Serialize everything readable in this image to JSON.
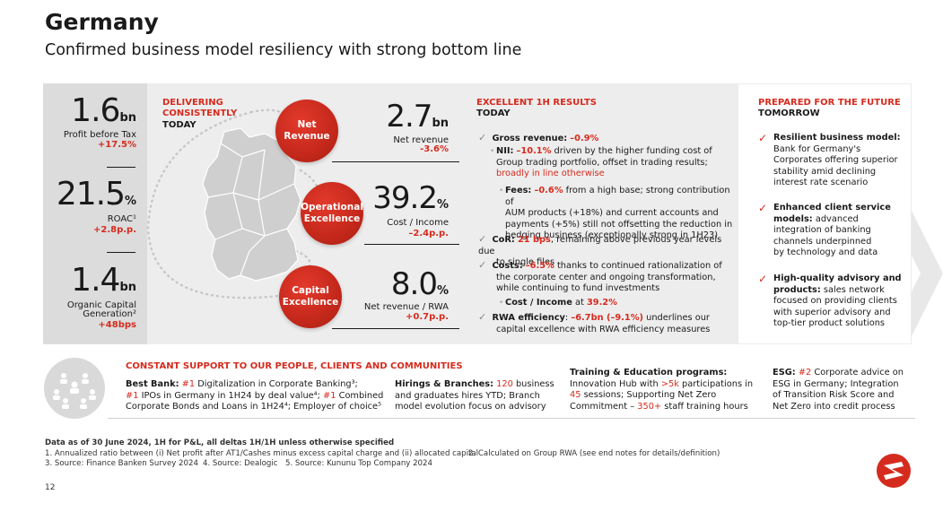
{
  "header": {
    "title": "Germany",
    "subtitle": "Confirmed business model resiliency with strong bottom line"
  },
  "kpis": [
    {
      "value": "1.6",
      "unit": "bn",
      "label": "Profit before Tax",
      "delta": "+17.5%"
    },
    {
      "value": "21.5",
      "unit": "%",
      "label": "ROAC¹",
      "delta": "+2.8p.p."
    },
    {
      "value": "1.4",
      "unit": "bn",
      "label_line1": "Organic Capital",
      "label_line2": "Generation²",
      "delta": "+48bps"
    }
  ],
  "delivering": {
    "line1": "DELIVERING",
    "line2": "CONSISTENTLY",
    "sub": "TODAY"
  },
  "circles": [
    {
      "line1": "Net",
      "line2": "Revenue"
    },
    {
      "line1": "Operational",
      "line2": "Excellence"
    },
    {
      "line1": "Capital",
      "line2": "Excellence"
    }
  ],
  "mid_kpis": [
    {
      "value": "2.7",
      "unit": "bn",
      "label": "Net revenue",
      "delta": "-3.6%"
    },
    {
      "value": "39.2",
      "unit": "%",
      "label": "Cost / Income",
      "delta": "–2.4p.p."
    },
    {
      "value": "8.0",
      "unit": "%",
      "label": "Net revenue / RWA",
      "delta": "+0.7p.p."
    }
  ],
  "results": {
    "head": "EXCELLENT 1H RESULTS",
    "sub": "TODAY",
    "gross_label": "Gross revenue:",
    "gross_value": "–0.9%",
    "nii_label": "NII:",
    "nii_value": "–10.1%",
    "nii_text1": " driven by the higher funding cost of",
    "nii_text2": "Group trading portfolio, offset in trading results;",
    "nii_text3": "broadly in line otherwise",
    "fees_label": "Fees:",
    "fees_value": "–0.6%",
    "fees_text1": " from a high base; strong contribution of",
    "fees_text2": "AUM products (+18%) and current accounts and",
    "fees_text3": "payments (+5%) still not offsetting the reduction in",
    "fees_text4": "hedging business (exceptionally strong in 1H23)",
    "cor_label": "CoR:",
    "cor_value": "21 bps",
    "cor_text1": ", remaining above previous year levels due",
    "cor_text2": "to single files",
    "costs_label": "Costs:",
    "costs_value": "–6.5%",
    "costs_text1": " thanks to continued rationalization of",
    "costs_text2": "the corporate center and ongoing transformation,",
    "costs_text3": "while continuing to fund investments",
    "ci_label": "Cost / Income",
    "ci_at": " at ",
    "ci_value": "39.2%",
    "rwa_label": "RWA efficiency",
    "rwa_colon": ": ",
    "rwa_value": "–6.7bn (–9.1%)",
    "rwa_text1": " underlines our",
    "rwa_text2": "capital excellence with RWA efficiency measures"
  },
  "future": {
    "head": "PREPARED FOR THE FUTURE",
    "sub": "TOMORROW",
    "items": [
      {
        "bold": "Resilient business model:",
        "lines": [
          "Bank for Germany's",
          "Corporates offering superior",
          "stability amid declining",
          "interest rate scenario"
        ]
      },
      {
        "bold1": "Enhanced client service",
        "bold2": "models:",
        "rest2": " advanced",
        "lines": [
          "integration of banking",
          "channels underpinned",
          "by technology and data"
        ]
      },
      {
        "bold1": "High-quality advisory and",
        "bold2": "products:",
        "rest2": " sales network",
        "lines": [
          "focused on providing clients",
          "with superior advisory and",
          "top-tier product solutions"
        ]
      }
    ]
  },
  "support": {
    "head": "CONSTANT SUPPORT TO OUR PEOPLE, CLIENTS AND COMMUNITIES",
    "best_label": "Best Bank:",
    "best_rank1": " #1",
    "best_t1": " Digitalization in Corporate Banking³;",
    "best_rank2": "#1",
    "best_t2": " IPOs in Germany in 1H24 by deal value⁴;",
    "best_rank3": " #1",
    "best_t3": " Combined",
    "best_t4": "Corporate Bonds and Loans in 1H24⁴; Employer of choice⁵",
    "hire_label": "Hirings & Branches:",
    "hire_value": " 120",
    "hire_t1": " business",
    "hire_t2": "and graduates hires YTD; Branch",
    "hire_t3": "model evolution focus on advisory",
    "train_label": "Training & Education programs:",
    "train_t1": "Innovation Hub with ",
    "train_v1": ">5k",
    "train_t2": " participations in",
    "train_v2": "45",
    "train_t3": " sessions; Supporting Net Zero",
    "train_t4": "Commitment – ",
    "train_v3": "350+",
    "train_t5": " staff training hours",
    "esg_label": "ESG:",
    "esg_rank": " #2",
    "esg_t1": " Corporate advice on",
    "esg_t2": "ESG in Germany; Integration",
    "esg_t3": "of Transition Risk Score and",
    "esg_t4": "Net Zero into credit process"
  },
  "footnotes": {
    "line0": "Data as of 30 June 2024, 1H for P&L, all deltas 1H/1H unless otherwise specified",
    "fn1": "1. Annualized ratio between (i) Net profit after AT1/Cashes minus excess capital charge and (ii) allocated capital",
    "fn2": "2. Calculated on Group RWA (see end notes for details/definition)",
    "fn3": "3. Source: Finance Banken Survey 2024",
    "fn4": "4. Source: Dealogic",
    "fn5": "5. Source: Kununu Top Company 2024"
  },
  "page_number": "12",
  "colors": {
    "accent": "#d52b1e",
    "panel": "#ededed",
    "kpi_panel": "#dcdcdc"
  },
  "icons": {
    "check": "check-icon",
    "people": "people-network-icon",
    "logo": "unicredit-logo-icon",
    "map": "germany-map-icon"
  }
}
